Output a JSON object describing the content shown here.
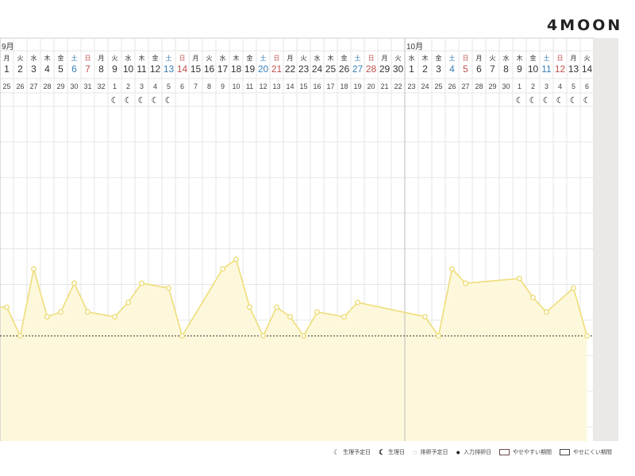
{
  "brand": {
    "logo_text": "4MOON"
  },
  "calendar": {
    "month_labels": [
      {
        "text": "9月",
        "column": 0
      },
      {
        "text": "10月",
        "column": 30
      }
    ],
    "weekdays": [
      "月",
      "火",
      "水",
      "木",
      "金",
      "土",
      "日",
      "月",
      "火",
      "水",
      "木",
      "金",
      "土",
      "日",
      "月",
      "火",
      "水",
      "木",
      "金",
      "土",
      "日",
      "月",
      "火",
      "水",
      "木",
      "金",
      "土",
      "日",
      "月",
      "火",
      "水",
      "木",
      "金",
      "土",
      "日",
      "月",
      "火",
      "水",
      "木",
      "金",
      "土",
      "日",
      "月",
      "火"
    ],
    "days": [
      "1",
      "2",
      "3",
      "4",
      "5",
      "6",
      "7",
      "8",
      "9",
      "10",
      "11",
      "12",
      "13",
      "14",
      "15",
      "16",
      "17",
      "18",
      "19",
      "20",
      "21",
      "22",
      "23",
      "24",
      "25",
      "26",
      "27",
      "28",
      "29",
      "30",
      "1",
      "2",
      "3",
      "4",
      "5",
      "6",
      "7",
      "8",
      "9",
      "10",
      "11",
      "12",
      "13",
      "14"
    ],
    "cycle_days": [
      "25",
      "26",
      "27",
      "28",
      "29",
      "30",
      "31",
      "32",
      "1",
      "2",
      "3",
      "4",
      "5",
      "6",
      "7",
      "8",
      "9",
      "10",
      "11",
      "12",
      "13",
      "14",
      "15",
      "16",
      "17",
      "18",
      "19",
      "20",
      "21",
      "22",
      "23",
      "24",
      "25",
      "26",
      "27",
      "28",
      "29",
      "30",
      "1",
      "2",
      "3",
      "4",
      "5",
      "6"
    ],
    "period_columns": [
      8,
      9,
      10,
      11,
      12,
      38,
      39,
      40,
      41,
      42,
      43
    ],
    "colors": {
      "saturday": "#3a7fb6",
      "sunday": "#c0504d",
      "weekday": "#333333",
      "line": "#eedd7a",
      "fill": "#fdf8dc",
      "grid": "#e6e6e6",
      "baseline": "#333333"
    }
  },
  "chart_data": {
    "type": "area",
    "values": [
      0.5,
      0.2,
      0.9,
      0.4,
      0.45,
      0.75,
      0.45,
      null,
      0.4,
      0.55,
      0.75,
      null,
      0.7,
      0.2,
      null,
      null,
      0.9,
      1.0,
      0.5,
      0.2,
      0.5,
      0.4,
      0.2,
      0.45,
      null,
      0.4,
      0.55,
      null,
      null,
      null,
      null,
      0.4,
      0.2,
      0.9,
      0.75,
      null,
      null,
      null,
      0.8,
      0.6,
      0.45,
      null,
      0.7,
      0.2
    ],
    "baseline": 0.2,
    "ylim": [
      -0.9,
      2.6
    ]
  },
  "legend": {
    "items": [
      {
        "icon": "☾",
        "label": "生理予定日"
      },
      {
        "icon": "☾",
        "label": "生理日"
      },
      {
        "icon": "◌",
        "label": "排卵予定日"
      },
      {
        "icon": "●",
        "label": "入力排卵日"
      },
      {
        "icon": "box-easy",
        "label": "やせやすい期間"
      },
      {
        "icon": "box-hard",
        "label": "やせにくい期間"
      }
    ]
  }
}
